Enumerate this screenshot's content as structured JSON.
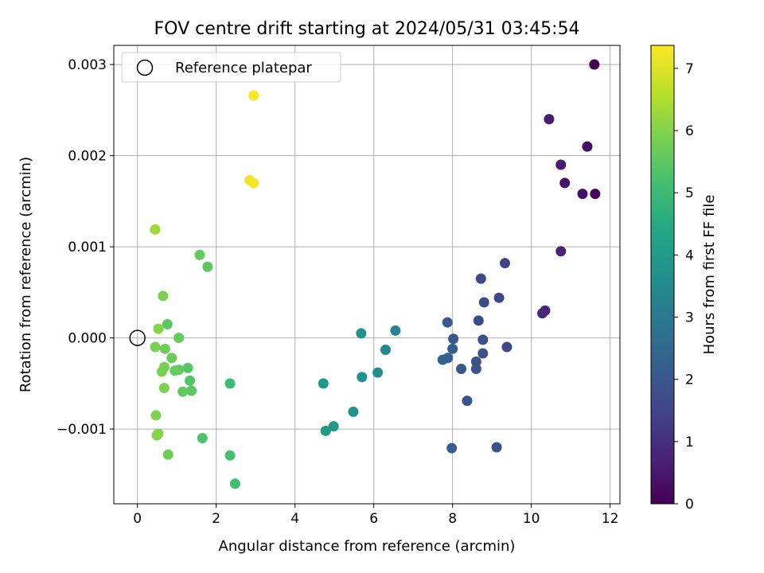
{
  "chart_data": {
    "type": "scatter",
    "title": "FOV centre drift starting at 2024/05/31 03:45:54",
    "xlabel": "Angular distance from reference (arcmin)",
    "ylabel": "Rotation from reference (arcmin)",
    "xlim": [
      -0.6,
      12.25
    ],
    "ylim": [
      -0.00182,
      0.00321
    ],
    "x_ticks": [
      0,
      2,
      4,
      6,
      8,
      10,
      12
    ],
    "x_tick_labels": [
      "0",
      "2",
      "4",
      "6",
      "8",
      "10",
      "12"
    ],
    "y_ticks": [
      -0.001,
      0.0,
      0.001,
      0.002,
      0.003
    ],
    "y_tick_labels": [
      "−0.001",
      "0.000",
      "0.001",
      "0.002",
      "0.003"
    ],
    "grid": true,
    "legend": {
      "placement": "upper-left",
      "entries": [
        {
          "label": "Reference platepar",
          "marker": "open-circle",
          "color": "#000000"
        }
      ]
    },
    "reference_point": {
      "x": 0,
      "y": 0
    },
    "colorbar": {
      "label": "Hours from first FF file",
      "colormap": "viridis",
      "range": [
        0,
        7.37
      ],
      "ticks": [
        0,
        1,
        2,
        3,
        4,
        5,
        6,
        7
      ],
      "tick_labels": [
        "0",
        "1",
        "2",
        "3",
        "4",
        "5",
        "6",
        "7"
      ]
    },
    "points": [
      {
        "x": 11.6,
        "y": 0.003,
        "hours": 0.0
      },
      {
        "x": 11.62,
        "y": 0.00158,
        "hours": 0.1
      },
      {
        "x": 11.42,
        "y": 0.0021,
        "hours": 0.25
      },
      {
        "x": 11.3,
        "y": 0.00158,
        "hours": 0.35
      },
      {
        "x": 10.85,
        "y": 0.0017,
        "hours": 0.45
      },
      {
        "x": 10.75,
        "y": 0.0019,
        "hours": 0.55
      },
      {
        "x": 10.45,
        "y": 0.0024,
        "hours": 0.6
      },
      {
        "x": 10.75,
        "y": 0.00095,
        "hours": 0.7
      },
      {
        "x": 10.35,
        "y": 0.0003,
        "hours": 0.8
      },
      {
        "x": 10.28,
        "y": 0.00027,
        "hours": 0.85
      },
      {
        "x": 9.33,
        "y": 0.00082,
        "hours": 1.5
      },
      {
        "x": 9.18,
        "y": 0.00044,
        "hours": 1.55
      },
      {
        "x": 8.72,
        "y": 0.00065,
        "hours": 1.6
      },
      {
        "x": 8.8,
        "y": 0.00039,
        "hours": 1.65
      },
      {
        "x": 8.66,
        "y": 0.00019,
        "hours": 1.7
      },
      {
        "x": 9.38,
        "y": -0.0001,
        "hours": 1.55
      },
      {
        "x": 8.77,
        "y": -2e-05,
        "hours": 1.75
      },
      {
        "x": 8.77,
        "y": -0.00017,
        "hours": 1.8
      },
      {
        "x": 8.6,
        "y": -0.00026,
        "hours": 1.85
      },
      {
        "x": 8.6,
        "y": -0.00034,
        "hours": 1.9
      },
      {
        "x": 9.12,
        "y": -0.0012,
        "hours": 1.85
      },
      {
        "x": 8.37,
        "y": -0.00069,
        "hours": 1.95
      },
      {
        "x": 8.22,
        "y": -0.00034,
        "hours": 2.0
      },
      {
        "x": 8.02,
        "y": -1e-05,
        "hours": 2.05
      },
      {
        "x": 7.87,
        "y": 0.00017,
        "hours": 2.1
      },
      {
        "x": 8.0,
        "y": -0.00012,
        "hours": 2.15
      },
      {
        "x": 7.88,
        "y": -0.00022,
        "hours": 2.2
      },
      {
        "x": 7.75,
        "y": -0.00024,
        "hours": 2.25
      },
      {
        "x": 7.98,
        "y": -0.00121,
        "hours": 2.2
      },
      {
        "x": 6.55,
        "y": 8e-05,
        "hours": 3.3
      },
      {
        "x": 6.3,
        "y": -0.00013,
        "hours": 3.45
      },
      {
        "x": 6.1,
        "y": -0.00038,
        "hours": 3.55
      },
      {
        "x": 5.68,
        "y": 5e-05,
        "hours": 3.75
      },
      {
        "x": 5.7,
        "y": -0.00043,
        "hours": 3.7
      },
      {
        "x": 5.48,
        "y": -0.00081,
        "hours": 3.8
      },
      {
        "x": 4.72,
        "y": -0.0005,
        "hours": 3.95
      },
      {
        "x": 4.98,
        "y": -0.00097,
        "hours": 3.9
      },
      {
        "x": 4.78,
        "y": -0.00102,
        "hours": 4.0
      },
      {
        "x": 2.35,
        "y": -0.0005,
        "hours": 5.0
      },
      {
        "x": 2.48,
        "y": -0.0016,
        "hours": 5.1
      },
      {
        "x": 2.35,
        "y": -0.00129,
        "hours": 5.2
      },
      {
        "x": 1.65,
        "y": -0.0011,
        "hours": 5.3
      },
      {
        "x": 1.28,
        "y": -0.00033,
        "hours": 5.4
      },
      {
        "x": 1.33,
        "y": -0.00047,
        "hours": 5.35
      },
      {
        "x": 1.37,
        "y": -0.00058,
        "hours": 5.45
      },
      {
        "x": 1.15,
        "y": -0.00059,
        "hours": 5.55
      },
      {
        "x": 1.05,
        "y": -0.00035,
        "hours": 5.6
      },
      {
        "x": 0.95,
        "y": -0.00036,
        "hours": 5.65
      },
      {
        "x": 0.87,
        "y": -0.00022,
        "hours": 5.7
      },
      {
        "x": 0.7,
        "y": -0.00012,
        "hours": 5.75
      },
      {
        "x": 0.68,
        "y": -0.00032,
        "hours": 5.8
      },
      {
        "x": 0.62,
        "y": -0.00037,
        "hours": 5.85
      },
      {
        "x": 0.68,
        "y": -0.00055,
        "hours": 5.9
      },
      {
        "x": 0.47,
        "y": -0.00085,
        "hours": 5.95
      },
      {
        "x": 0.53,
        "y": -0.00105,
        "hours": 6.0
      },
      {
        "x": 0.49,
        "y": -0.00107,
        "hours": 6.05
      },
      {
        "x": 0.78,
        "y": -0.00128,
        "hours": 5.75
      },
      {
        "x": 0.45,
        "y": -0.0001,
        "hours": 5.9
      },
      {
        "x": 1.05,
        "y": 0.0,
        "hours": 5.6
      },
      {
        "x": 0.76,
        "y": 0.00015,
        "hours": 5.5
      },
      {
        "x": 0.53,
        "y": 0.0001,
        "hours": 6.0
      },
      {
        "x": 0.65,
        "y": 0.00046,
        "hours": 5.9
      },
      {
        "x": 1.58,
        "y": 0.00091,
        "hours": 5.6
      },
      {
        "x": 1.78,
        "y": 0.00078,
        "hours": 5.5
      },
      {
        "x": 0.45,
        "y": 0.00119,
        "hours": 6.3
      },
      {
        "x": 2.85,
        "y": 0.00173,
        "hours": 7.2
      },
      {
        "x": 2.95,
        "y": 0.0017,
        "hours": 7.25
      },
      {
        "x": 2.95,
        "y": 0.00266,
        "hours": 7.35
      }
    ]
  }
}
